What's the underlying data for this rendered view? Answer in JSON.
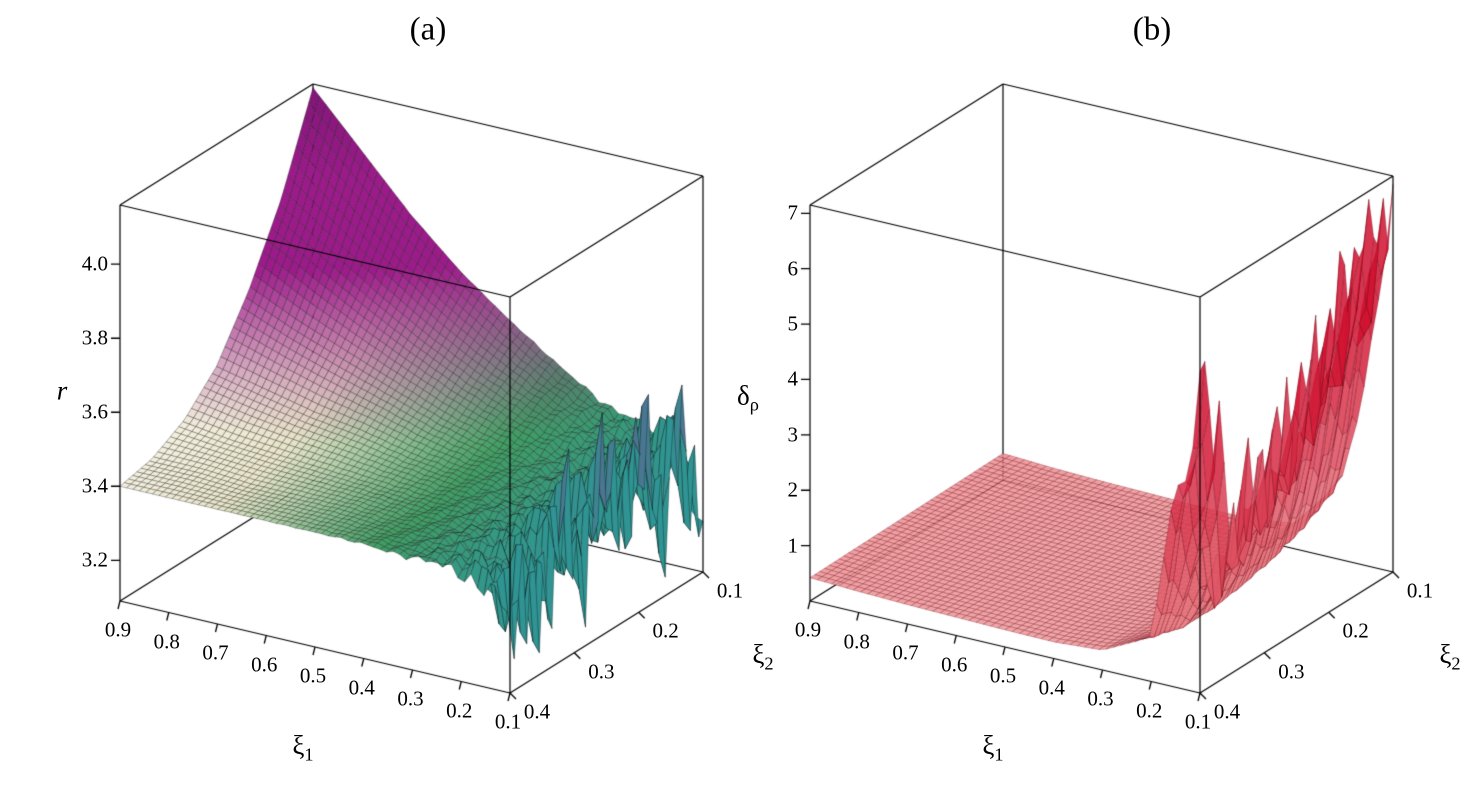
{
  "chart_data": [
    {
      "type": "surface",
      "panel": "a",
      "labels": {
        "title": "(a)",
        "z": "r",
        "z_sub": "",
        "x": "ξ",
        "x_sub": "1",
        "y": "ξ",
        "y_sub": "2"
      },
      "x_ticks": [
        "0.9",
        "0.8",
        "0.7",
        "0.6",
        "0.5",
        "0.4",
        "0.3",
        "0.2",
        "0.1"
      ],
      "y_ticks": [
        "0.1",
        "0.2",
        "0.3",
        "0.4"
      ],
      "z_ticks": [
        "3.2",
        "3.4",
        "3.6",
        "3.8",
        "4.0"
      ],
      "x_range": [
        0.1,
        0.9
      ],
      "y_range": [
        0.1,
        0.4
      ],
      "z_range": [
        3.09,
        4.16
      ],
      "z_clamp": [
        3.14,
        4.155
      ],
      "grid": {
        "x": [
          0.1,
          0.2,
          0.3,
          0.4,
          0.5,
          0.6,
          0.7,
          0.8,
          0.9
        ],
        "y": [
          0.1,
          0.15,
          0.2,
          0.25,
          0.3,
          0.35,
          0.4
        ],
        "values": [
          [
            3.4,
            3.43,
            3.48,
            3.56,
            3.65,
            3.75,
            3.87,
            4.01,
            4.15
          ],
          [
            3.4,
            3.42,
            3.46,
            3.51,
            3.57,
            3.64,
            3.72,
            3.81,
            3.9
          ],
          [
            3.4,
            3.41,
            3.43,
            3.46,
            3.5,
            3.55,
            3.6,
            3.65,
            3.71
          ],
          [
            3.4,
            3.41,
            3.42,
            3.43,
            3.45,
            3.48,
            3.5,
            3.53,
            3.56
          ],
          [
            3.4,
            3.4,
            3.41,
            3.41,
            3.42,
            3.43,
            3.44,
            3.45,
            3.47
          ],
          [
            3.39,
            3.4,
            3.4,
            3.4,
            3.41,
            3.41,
            3.41,
            3.42,
            3.42
          ],
          [
            3.39,
            3.39,
            3.39,
            3.4,
            3.4,
            3.4,
            3.4,
            3.4,
            3.4
          ]
        ]
      },
      "noise": {
        "kind": "oscillation",
        "amplitude": 0.26,
        "decay": 0.045,
        "wavelength_y": 0.018,
        "wavelength_x": 0.014,
        "amplitude2": 0.05,
        "decay2": 0.12,
        "wavelength_y2": 0.05,
        "wavelength_x2": 0.045
      },
      "style": {
        "kind": "a",
        "low_stops": [
          [
            0.0,
            "#2f9494"
          ],
          [
            0.35,
            "#3f9e62"
          ],
          [
            0.75,
            "#e9e5c9"
          ],
          [
            1.0,
            "#f3efde"
          ]
        ],
        "high_color": "#9c1b8a",
        "deep_color": "#601062",
        "blend_start": 3.46,
        "blend_span": 0.3,
        "deep_start": 3.95,
        "deep_span": 0.25,
        "mesh_line": "rgba(15,15,15,0.55)",
        "fill_alpha": 1
      }
    },
    {
      "type": "surface",
      "panel": "b",
      "labels": {
        "title": "(b)",
        "z": "δ",
        "z_sub": "ρ",
        "x": "ξ",
        "x_sub": "1",
        "y": "ξ",
        "y_sub": "2"
      },
      "x_ticks": [
        "0.9",
        "0.8",
        "0.7",
        "0.6",
        "0.5",
        "0.4",
        "0.3",
        "0.2",
        "0.1"
      ],
      "y_ticks": [
        "0.1",
        "0.2",
        "0.3",
        "0.4"
      ],
      "z_ticks": [
        "1",
        "2",
        "3",
        "4",
        "5",
        "6",
        "7"
      ],
      "x_range": [
        0.1,
        0.9
      ],
      "y_range": [
        0.1,
        0.4
      ],
      "z_range": [
        0,
        7.15
      ],
      "z_clamp": [
        0.04,
        7.0
      ],
      "grid": {
        "x": [
          0.1,
          0.2,
          0.3,
          0.4,
          0.5,
          0.6,
          0.7,
          0.8,
          0.9
        ],
        "y": [
          0.1,
          0.15,
          0.2,
          0.25,
          0.3,
          0.35,
          0.4
        ],
        "values": [
          [
            6.6,
            1.5,
            0.46,
            0.35,
            0.36,
            0.38,
            0.4,
            0.43,
            0.48
          ],
          [
            6.2,
            1.1,
            0.44,
            0.34,
            0.35,
            0.37,
            0.39,
            0.42,
            0.47
          ],
          [
            4.8,
            0.85,
            0.42,
            0.33,
            0.34,
            0.36,
            0.38,
            0.41,
            0.46
          ],
          [
            3.8,
            0.7,
            0.4,
            0.32,
            0.33,
            0.35,
            0.37,
            0.4,
            0.45
          ],
          [
            3.2,
            0.6,
            0.38,
            0.31,
            0.32,
            0.34,
            0.36,
            0.39,
            0.44
          ],
          [
            2.2,
            0.6,
            0.37,
            0.31,
            0.32,
            0.33,
            0.35,
            0.38,
            0.43
          ],
          [
            6.0,
            0.8,
            0.36,
            0.3,
            0.31,
            0.33,
            0.35,
            0.38,
            0.42
          ]
        ]
      },
      "noise": {
        "kind": "jagged",
        "amplitude": 1.35,
        "decay": 0.05,
        "threshold": 0.5,
        "wavelength_y": 0.021,
        "wavelength_y2": 0.009,
        "wavelength_x": 0.02
      },
      "style": {
        "kind": "b",
        "light_color": "#f5b2ae",
        "dark_color": "#d01432",
        "t_div": 4.5,
        "t_pow": 0.65,
        "mesh_line": "rgba(110,10,25,0.5)",
        "fill_alpha": 0.86
      }
    }
  ]
}
